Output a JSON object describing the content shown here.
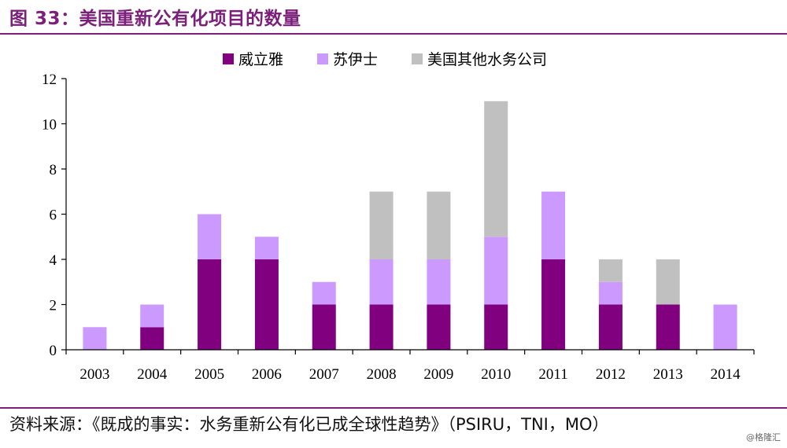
{
  "header": {
    "title": "图 33：美国重新公有化项目的数量"
  },
  "footer": {
    "source": "资料来源：《既成的事实：水务重新公有化已成全球性趋势》（PSIRU，TNI，MO）",
    "watermark": "@格隆汇"
  },
  "chart_data": {
    "type": "bar",
    "stacked": true,
    "categories": [
      "2003",
      "2004",
      "2005",
      "2006",
      "2007",
      "2008",
      "2009",
      "2010",
      "2011",
      "2012",
      "2013",
      "2014"
    ],
    "series": [
      {
        "name": "威立雅",
        "color": "#800080",
        "values": [
          0,
          1,
          4,
          4,
          2,
          2,
          2,
          2,
          4,
          2,
          2,
          0
        ]
      },
      {
        "name": "苏伊士",
        "color": "#cc99ff",
        "values": [
          1,
          1,
          2,
          1,
          1,
          2,
          2,
          3,
          3,
          1,
          0,
          2
        ]
      },
      {
        "name": "美国其他水务公司",
        "color": "#c0c0c0",
        "values": [
          0,
          0,
          0,
          0,
          0,
          3,
          3,
          6,
          0,
          1,
          2,
          0
        ]
      }
    ],
    "ylim": [
      0,
      12
    ],
    "yticks": [
      0,
      2,
      4,
      6,
      8,
      10,
      12
    ],
    "legend_position": "top-center",
    "grid": false
  }
}
